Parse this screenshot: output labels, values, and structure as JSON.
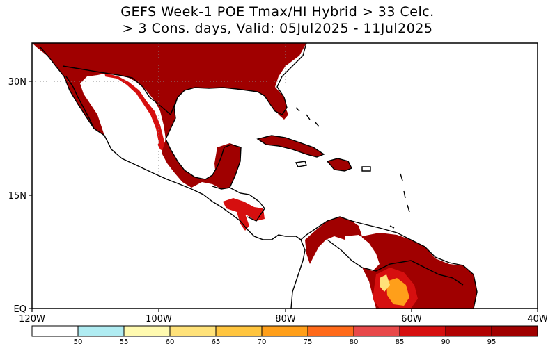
{
  "title": {
    "line1": "GEFS Week-1 POE Tmax/HI Hybrid > 33 Celc.",
    "line2": "> 3 Cons. days, Valid: 05Jul2025 - 11Jul2025"
  },
  "map": {
    "lon_range": [
      -120,
      -40
    ],
    "lat_range": [
      0,
      36
    ],
    "x_tick_labels": [
      "120W",
      "100W",
      "80W",
      "60W",
      "40W"
    ],
    "y_tick_labels": [
      "30N",
      "15N",
      "EQ"
    ],
    "land_fill": "#ffffff",
    "ocean_fill": "#ffffff",
    "boundary_color": "#000000"
  },
  "colorbar": {
    "labels": [
      "50",
      "55",
      "60",
      "65",
      "70",
      "75",
      "80",
      "85",
      "90",
      "95"
    ],
    "colors": [
      "#ffffff",
      "#b0ecf2",
      "#fffab0",
      "#ffe27a",
      "#ffc53f",
      "#ff9f1a",
      "#ff6a1a",
      "#e8494a",
      "#d60f0f",
      "#b10202",
      "#a00000"
    ]
  },
  "shading": {
    "description_colors": {
      "dark_red": "#a00000",
      "red": "#d60f0f",
      "orange": "#ff9f1a",
      "yellow": "#ffe27a"
    }
  }
}
